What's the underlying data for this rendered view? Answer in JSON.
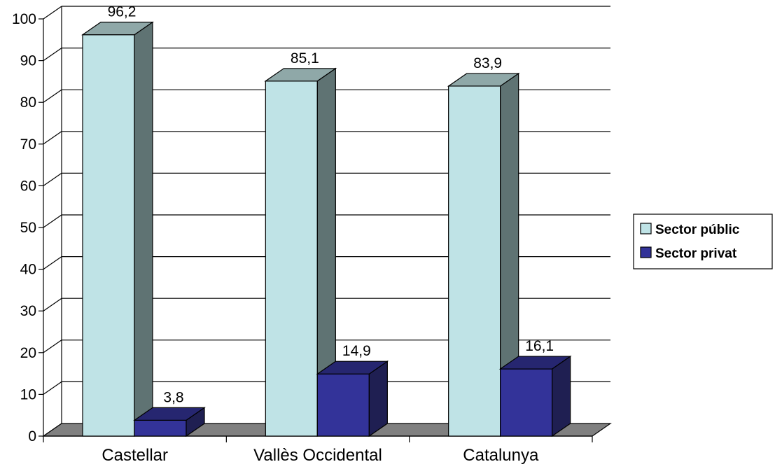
{
  "chart_data": {
    "type": "bar",
    "categories": [
      "Castellar",
      "Vallès Occidental",
      "Catalunya"
    ],
    "series": [
      {
        "name": "Sector públic",
        "values": [
          96.2,
          85.1,
          83.9
        ],
        "labels": [
          "96,2",
          "85,1",
          "83,9"
        ],
        "color": "#bfe3e6"
      },
      {
        "name": "Sector privat",
        "values": [
          3.8,
          14.9,
          16.1
        ],
        "labels": [
          "3,8",
          "14,9",
          "16,1"
        ],
        "color": "#333399"
      }
    ],
    "ylim": [
      0,
      100
    ],
    "yticks": [
      0,
      10,
      20,
      30,
      40,
      50,
      60,
      70,
      80,
      90,
      100
    ],
    "ytick_labels": [
      "0",
      "10",
      "20",
      "30",
      "40",
      "50",
      "60",
      "70",
      "80",
      "90",
      "100"
    ],
    "grid": true,
    "legend_position": "right",
    "style": "3d-bar"
  }
}
